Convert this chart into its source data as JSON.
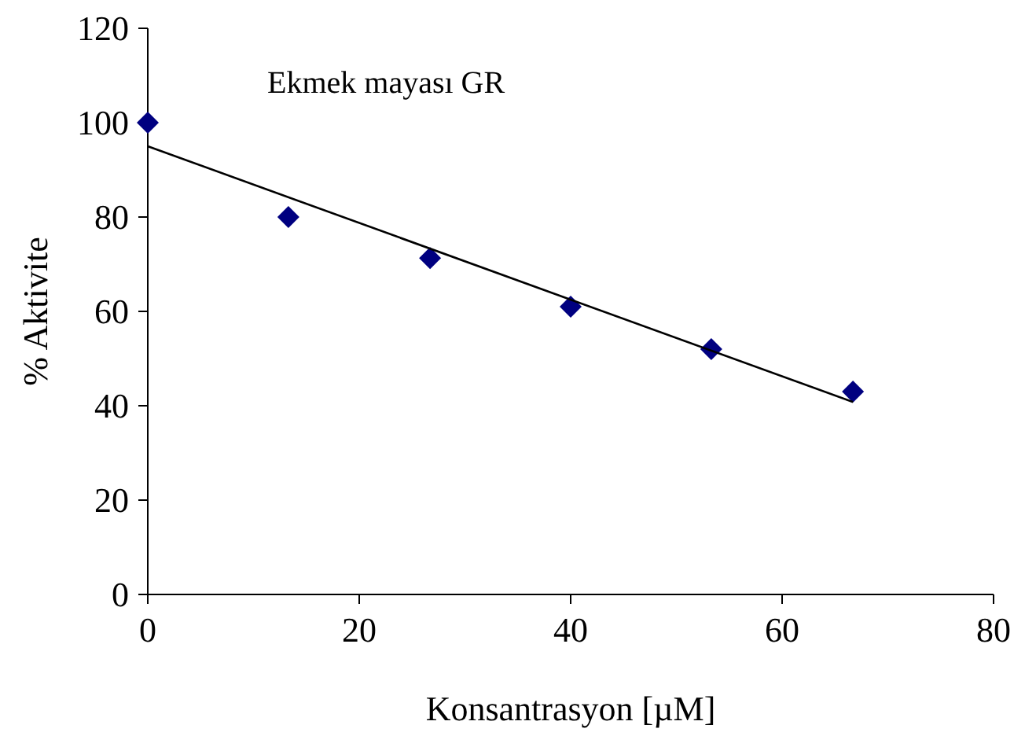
{
  "chart_data": {
    "type": "scatter",
    "xlabel": "Konsantrasyon [µM]",
    "ylabel": "% Aktivite",
    "annotations": [
      "Ekmek mayası GR"
    ],
    "xlim": [
      0,
      80
    ],
    "xticks": [
      0,
      20,
      40,
      60,
      80
    ],
    "ylim": [
      0,
      120
    ],
    "yticks": [
      0,
      20,
      40,
      60,
      80,
      100,
      120
    ],
    "grid": false,
    "marker": "diamond",
    "series": [
      {
        "color": "#000080",
        "x": [
          0,
          13.3,
          26.7,
          40,
          53.3,
          66.7
        ],
        "values": [
          100,
          80,
          71.3,
          61,
          52,
          43
        ]
      },
      {
        "type": "line",
        "color": "#000000",
        "x": [
          0,
          66.7
        ],
        "values": [
          95,
          40.8
        ],
        "marker": "none",
        "line_style": "solid"
      }
    ]
  }
}
